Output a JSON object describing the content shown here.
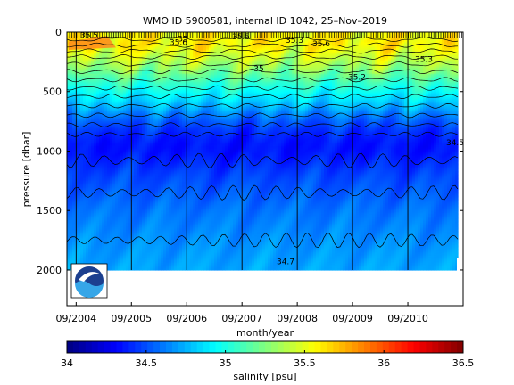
{
  "chart_data": {
    "type": "heatmap",
    "title": "WMO ID 5900581, internal ID 1042, 25–Nov–2019",
    "xlabel": "month/year",
    "ylabel": "pressure [dbar]",
    "x_ticks": [
      "09/2004",
      "09/2005",
      "09/2006",
      "09/2007",
      "09/2008",
      "09/2009",
      "09/2010"
    ],
    "y_ticks": [
      "0",
      "500",
      "1000",
      "1500",
      "2000"
    ],
    "xlim": [
      "2004-07",
      "2011-09"
    ],
    "ylim": [
      2300,
      0
    ],
    "y_reversed": true,
    "colorbar": {
      "label": "salinity [psu]",
      "ticks": [
        "34",
        "34.5",
        "35",
        "35.5",
        "36",
        "36.5"
      ],
      "range": [
        34,
        36.5
      ],
      "colormap": "jet"
    },
    "contour_labels": [
      "35.5",
      "35.6",
      "35.3",
      "35.2",
      "35",
      "34.5",
      "34.7"
    ],
    "profile": [
      {
        "pressure": 0,
        "salinity": 35.55
      },
      {
        "pressure": 100,
        "salinity": 35.6
      },
      {
        "pressure": 200,
        "salinity": 35.45
      },
      {
        "pressure": 300,
        "salinity": 35.3
      },
      {
        "pressure": 400,
        "salinity": 35.1
      },
      {
        "pressure": 500,
        "salinity": 34.95
      },
      {
        "pressure": 600,
        "salinity": 34.8
      },
      {
        "pressure": 700,
        "salinity": 34.6
      },
      {
        "pressure": 800,
        "salinity": 34.45
      },
      {
        "pressure": 900,
        "salinity": 34.36
      },
      {
        "pressure": 1000,
        "salinity": 34.35
      },
      {
        "pressure": 1200,
        "salinity": 34.48
      },
      {
        "pressure": 1500,
        "salinity": 34.6
      },
      {
        "pressure": 1800,
        "salinity": 34.68
      },
      {
        "pressure": 2000,
        "salinity": 34.72
      }
    ],
    "grid": false
  },
  "logo": {
    "text": "NOAA"
  }
}
